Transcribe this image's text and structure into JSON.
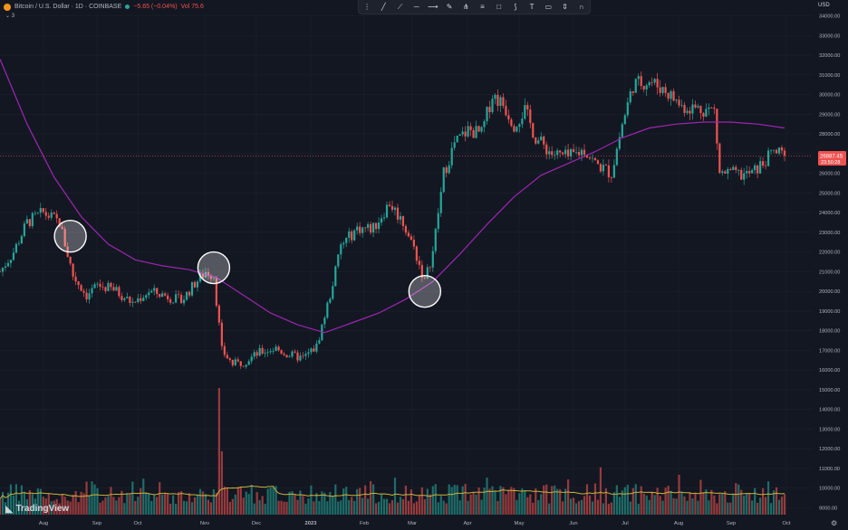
{
  "legend": {
    "symbol": "Bitcoin / U.S. Dollar · 1D · COINBASE",
    "change": "−5.65 (−0.04%)",
    "volume_label": "Vol 75.6"
  },
  "indicator_count": "3",
  "currency": "USD",
  "brand": "TradingView",
  "toolbar_icons": [
    "drag-handle-icon",
    "trend-line-icon",
    "ray-icon",
    "horizontal-line-icon",
    "extended-line-icon",
    "brush-icon",
    "pitchfork-icon",
    "fib-icon",
    "rectangle-icon",
    "path-icon",
    "text-icon",
    "note-icon",
    "price-range-icon",
    "magnet-icon"
  ],
  "colors": {
    "background": "#131722",
    "up": "#26a69a",
    "down": "#ef5350",
    "ma": "#9c27b0",
    "volume_ma": "#c9b33a",
    "price_line": "#ef5350",
    "circle": "#ffffff"
  },
  "chart_data": {
    "type": "candlestick",
    "instrument": "Bitcoin / U.S. Dollar",
    "interval": "1D",
    "exchange": "COINBASE",
    "x_axis_labels": [
      "Aug",
      "Sep",
      "Oct",
      "Nov",
      "Dec",
      "2023",
      "Feb",
      "Mar",
      "Apr",
      "May",
      "Jun",
      "Jul",
      "Aug",
      "Sep",
      "Oct"
    ],
    "y_axis_labels": [
      "9000.00",
      "10000.00",
      "11000.00",
      "12000.00",
      "13000.00",
      "14000.00",
      "15000.00",
      "16000.00",
      "17000.00",
      "18000.00",
      "19000.00",
      "20000.00",
      "21000.00",
      "22000.00",
      "23000.00",
      "24000.00",
      "25000.00",
      "26000.00",
      "27000.00",
      "28000.00",
      "29000.00",
      "30000.00",
      "31000.00",
      "32000.00",
      "33000.00",
      "34000.00"
    ],
    "ylim": [
      8900,
      34000
    ],
    "current_price": "26887.45",
    "countdown": "23:50:28",
    "price_path": [
      {
        "t": 0,
        "p": 21000
      },
      {
        "t": 5,
        "p": 22000
      },
      {
        "t": 10,
        "p": 23500
      },
      {
        "t": 16,
        "p": 24000
      },
      {
        "t": 22,
        "p": 23500
      },
      {
        "t": 27,
        "p": 20800
      },
      {
        "t": 32,
        "p": 19800
      },
      {
        "t": 36,
        "p": 20300
      },
      {
        "t": 42,
        "p": 20100
      },
      {
        "t": 49,
        "p": 19400
      },
      {
        "t": 55,
        "p": 20000
      },
      {
        "t": 61,
        "p": 19800
      },
      {
        "t": 67,
        "p": 19500
      },
      {
        "t": 72,
        "p": 20400
      },
      {
        "t": 76,
        "p": 21000
      },
      {
        "t": 79,
        "p": 20800
      },
      {
        "t": 82,
        "p": 17000
      },
      {
        "t": 86,
        "p": 16300
      },
      {
        "t": 90,
        "p": 16400
      },
      {
        "t": 96,
        "p": 16900
      },
      {
        "t": 102,
        "p": 17100
      },
      {
        "t": 106,
        "p": 16800
      },
      {
        "t": 112,
        "p": 16600
      },
      {
        "t": 117,
        "p": 17200
      },
      {
        "t": 122,
        "p": 19800
      },
      {
        "t": 126,
        "p": 22300
      },
      {
        "t": 132,
        "p": 23200
      },
      {
        "t": 138,
        "p": 23200
      },
      {
        "t": 144,
        "p": 24500
      },
      {
        "t": 149,
        "p": 23500
      },
      {
        "t": 153,
        "p": 22200
      },
      {
        "t": 157,
        "p": 20500
      },
      {
        "t": 160,
        "p": 22000
      },
      {
        "t": 164,
        "p": 26000
      },
      {
        "t": 168,
        "p": 27500
      },
      {
        "t": 173,
        "p": 28200
      },
      {
        "t": 178,
        "p": 28000
      },
      {
        "t": 182,
        "p": 30000
      },
      {
        "t": 186,
        "p": 29500
      },
      {
        "t": 190,
        "p": 28500
      },
      {
        "t": 194,
        "p": 29200
      },
      {
        "t": 198,
        "p": 27800
      },
      {
        "t": 204,
        "p": 27000
      },
      {
        "t": 210,
        "p": 26800
      },
      {
        "t": 216,
        "p": 27200
      },
      {
        "t": 220,
        "p": 26500
      },
      {
        "t": 226,
        "p": 26000
      },
      {
        "t": 230,
        "p": 28500
      },
      {
        "t": 234,
        "p": 30500
      },
      {
        "t": 240,
        "p": 30700
      },
      {
        "t": 246,
        "p": 30200
      },
      {
        "t": 252,
        "p": 29400
      },
      {
        "t": 258,
        "p": 29300
      },
      {
        "t": 264,
        "p": 29200
      },
      {
        "t": 266,
        "p": 26000
      },
      {
        "t": 270,
        "p": 26000
      },
      {
        "t": 274,
        "p": 25900
      },
      {
        "t": 278,
        "p": 26000
      },
      {
        "t": 282,
        "p": 26500
      },
      {
        "t": 286,
        "p": 27100
      },
      {
        "t": 290,
        "p": 26887
      }
    ],
    "ma_path": [
      {
        "t": 0,
        "p": 31800
      },
      {
        "t": 10,
        "p": 28500
      },
      {
        "t": 20,
        "p": 25800
      },
      {
        "t": 30,
        "p": 23800
      },
      {
        "t": 40,
        "p": 22400
      },
      {
        "t": 50,
        "p": 21600
      },
      {
        "t": 60,
        "p": 21300
      },
      {
        "t": 70,
        "p": 21100
      },
      {
        "t": 80,
        "p": 20700
      },
      {
        "t": 90,
        "p": 19800
      },
      {
        "t": 100,
        "p": 18900
      },
      {
        "t": 110,
        "p": 18300
      },
      {
        "t": 120,
        "p": 17900
      },
      {
        "t": 130,
        "p": 18400
      },
      {
        "t": 140,
        "p": 18900
      },
      {
        "t": 150,
        "p": 19600
      },
      {
        "t": 160,
        "p": 20500
      },
      {
        "t": 170,
        "p": 21900
      },
      {
        "t": 180,
        "p": 23400
      },
      {
        "t": 190,
        "p": 24800
      },
      {
        "t": 200,
        "p": 25900
      },
      {
        "t": 210,
        "p": 26500
      },
      {
        "t": 220,
        "p": 27100
      },
      {
        "t": 230,
        "p": 27800
      },
      {
        "t": 240,
        "p": 28300
      },
      {
        "t": 250,
        "p": 28500
      },
      {
        "t": 260,
        "p": 28600
      },
      {
        "t": 270,
        "p": 28600
      },
      {
        "t": 280,
        "p": 28500
      },
      {
        "t": 290,
        "p": 28300
      }
    ],
    "volume_spike_t": 81,
    "annotations": [
      {
        "type": "circle",
        "t": 26,
        "p": 22800
      },
      {
        "type": "circle",
        "t": 79,
        "p": 21200
      },
      {
        "type": "circle",
        "t": 157,
        "p": 20000
      }
    ]
  }
}
